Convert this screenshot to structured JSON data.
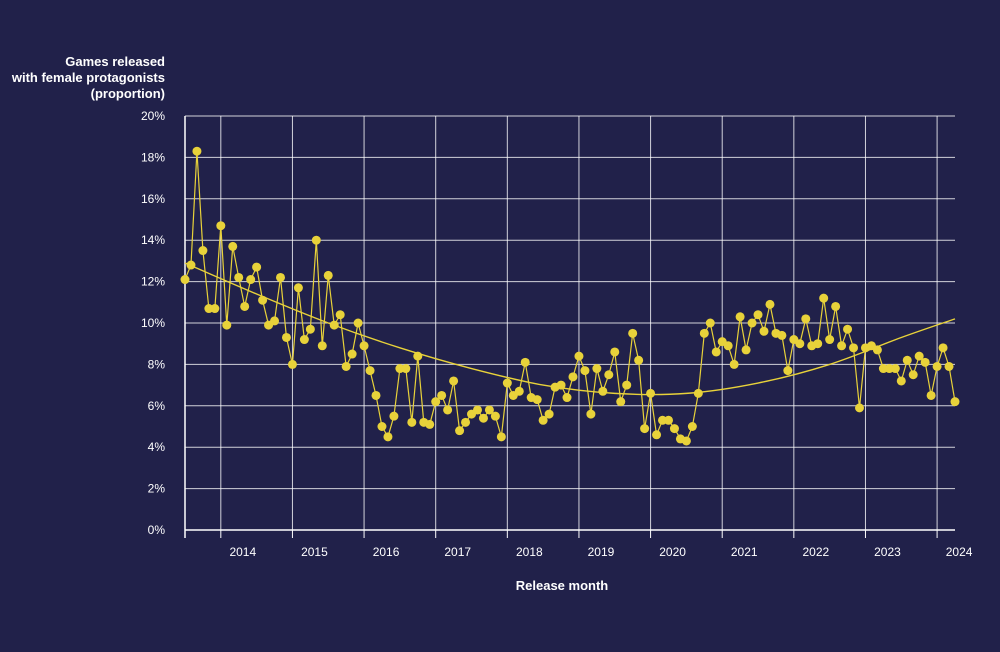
{
  "chart_data": {
    "type": "scatter",
    "ylabel_lines": [
      "Games released",
      "with female protagonists",
      "(proportion)"
    ],
    "xlabel": "Release month",
    "y_ticks": [
      "0%",
      "2%",
      "4%",
      "6%",
      "8%",
      "10%",
      "12%",
      "14%",
      "16%",
      "18%",
      "20%"
    ],
    "ylim": [
      0,
      20
    ],
    "x_ticks": [
      "2014",
      "2015",
      "2016",
      "2017",
      "2018",
      "2019",
      "2020",
      "2021",
      "2022",
      "2023",
      "2024"
    ],
    "xlim": [
      "2013-07",
      "2024-04"
    ],
    "grid": true,
    "colors": {
      "background": "#21214a",
      "series": "#e8d23a",
      "grid": "#ffffff",
      "text": "#ffffff"
    },
    "series": [
      {
        "x": [
          "2013-07",
          "2013-08",
          "2013-09",
          "2013-10",
          "2013-11",
          "2013-12",
          "2014-01",
          "2014-02",
          "2014-03",
          "2014-04",
          "2014-05",
          "2014-06",
          "2014-07",
          "2014-08",
          "2014-09",
          "2014-10",
          "2014-11",
          "2014-12",
          "2015-01",
          "2015-02",
          "2015-03",
          "2015-04",
          "2015-05",
          "2015-06",
          "2015-07",
          "2015-08",
          "2015-09",
          "2015-10",
          "2015-11",
          "2015-12",
          "2016-01",
          "2016-02",
          "2016-03",
          "2016-04",
          "2016-05",
          "2016-06",
          "2016-07",
          "2016-08",
          "2016-09",
          "2016-10",
          "2016-11",
          "2016-12",
          "2017-01",
          "2017-02",
          "2017-03",
          "2017-04",
          "2017-05",
          "2017-06",
          "2017-07",
          "2017-08",
          "2017-09",
          "2017-10",
          "2017-11",
          "2017-12",
          "2018-01",
          "2018-02",
          "2018-03",
          "2018-04",
          "2018-05",
          "2018-06",
          "2018-07",
          "2018-08",
          "2018-09",
          "2018-10",
          "2018-11",
          "2018-12",
          "2019-01",
          "2019-02",
          "2019-03",
          "2019-04",
          "2019-05",
          "2019-06",
          "2019-07",
          "2019-08",
          "2019-09",
          "2019-10",
          "2019-11",
          "2019-12",
          "2020-01",
          "2020-02",
          "2020-03",
          "2020-04",
          "2020-05",
          "2020-06",
          "2020-07",
          "2020-08",
          "2020-09",
          "2020-10",
          "2020-11",
          "2020-12",
          "2021-01",
          "2021-02",
          "2021-03",
          "2021-04",
          "2021-05",
          "2021-06",
          "2021-07",
          "2021-08",
          "2021-09",
          "2021-10",
          "2021-11",
          "2021-12",
          "2022-01",
          "2022-02",
          "2022-03",
          "2022-04",
          "2022-05",
          "2022-06",
          "2022-07",
          "2022-08",
          "2022-09",
          "2022-10",
          "2022-11",
          "2022-12",
          "2023-01",
          "2023-02",
          "2023-03",
          "2023-04",
          "2023-05",
          "2023-06",
          "2023-07",
          "2023-08",
          "2023-09",
          "2023-10",
          "2023-11",
          "2023-12",
          "2024-01",
          "2024-02",
          "2024-03",
          "2024-04"
        ],
        "values": [
          12.1,
          12.8,
          18.3,
          13.5,
          10.7,
          10.7,
          14.7,
          9.9,
          13.7,
          12.2,
          10.8,
          12.1,
          12.7,
          11.1,
          9.9,
          10.1,
          12.2,
          9.3,
          8.0,
          11.7,
          9.2,
          9.7,
          14.0,
          8.9,
          12.3,
          9.9,
          10.4,
          7.9,
          8.5,
          10.0,
          8.9,
          7.7,
          6.5,
          5.0,
          4.5,
          5.5,
          7.8,
          7.8,
          5.2,
          8.4,
          5.2,
          5.1,
          6.2,
          6.5,
          5.8,
          7.2,
          4.8,
          5.2,
          5.6,
          5.8,
          5.4,
          5.8,
          5.5,
          4.5,
          7.1,
          6.5,
          6.7,
          8.1,
          6.4,
          6.3,
          5.3,
          5.6,
          6.9,
          7.0,
          6.4,
          7.4,
          8.4,
          7.7,
          5.6,
          7.8,
          6.7,
          7.5,
          8.6,
          6.2,
          7.0,
          9.5,
          8.2,
          4.9,
          6.6,
          4.6,
          5.3,
          5.3,
          4.9,
          4.4,
          4.3,
          5.0,
          6.6,
          9.5,
          10.0,
          8.6,
          9.1,
          8.9,
          8.0,
          10.3,
          8.7,
          10.0,
          10.4,
          9.6,
          10.9,
          9.5,
          9.4,
          7.7,
          9.2,
          9.0,
          10.2,
          8.9,
          9.0,
          11.2,
          9.2,
          10.8,
          8.9,
          9.7,
          8.8,
          5.9,
          8.8,
          8.9,
          8.7,
          7.8,
          7.8,
          7.8,
          7.2,
          8.2,
          7.5,
          8.4,
          8.1,
          6.5,
          7.9,
          8.8,
          7.9,
          6.2
        ]
      }
    ],
    "trend": {
      "x": [
        "2013-07",
        "2014-07",
        "2015-07",
        "2016-07",
        "2017-07",
        "2018-07",
        "2019-07",
        "2020-07",
        "2021-07",
        "2022-07",
        "2023-07",
        "2024-04"
      ],
      "values": [
        12.9,
        11.4,
        10.0,
        8.8,
        7.8,
        7.0,
        6.6,
        6.6,
        7.1,
        8.0,
        9.3,
        10.2
      ]
    }
  }
}
